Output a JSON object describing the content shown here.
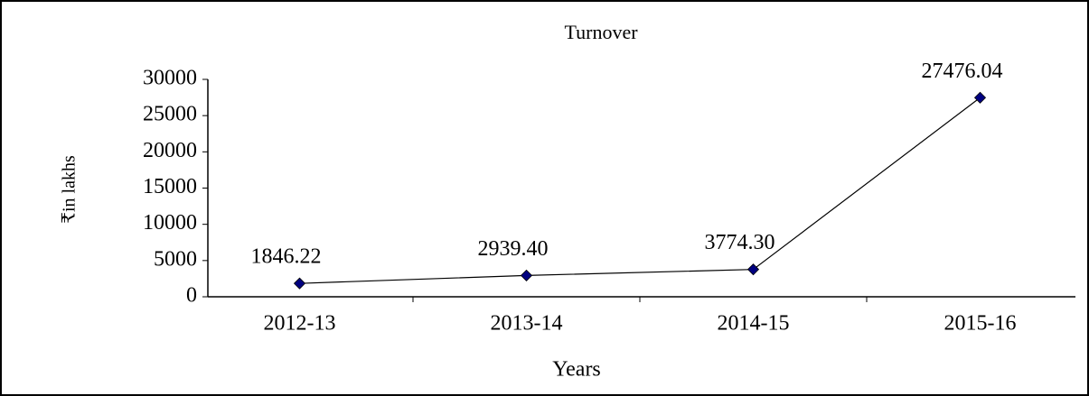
{
  "chart_data": {
    "type": "line",
    "title": "Turnover",
    "x_label": "Years",
    "y_label": "₹in lakhs",
    "categories": [
      "2012-13",
      "2013-14",
      "2014-15",
      "2015-16"
    ],
    "series": [
      {
        "name": "Turnover",
        "color": "#000080",
        "values": [
          1846.22,
          2939.4,
          3774.3,
          27476.04
        ],
        "value_labels": [
          "1846.22",
          "2939.40",
          "3774.30",
          "27476.04"
        ]
      }
    ],
    "ylim": [
      0,
      30000
    ],
    "yticks": [
      0,
      5000,
      10000,
      15000,
      20000,
      25000,
      30000
    ]
  }
}
